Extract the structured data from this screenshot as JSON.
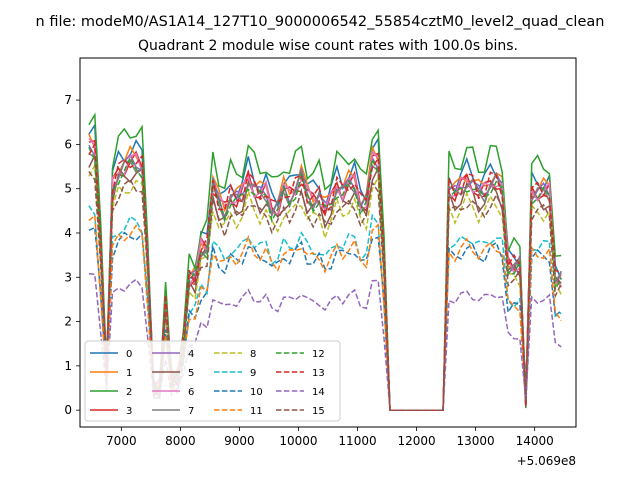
{
  "chart_data": {
    "type": "line",
    "suptitle": "n file: modeM0/AS1A14_127T10_9000006542_55854cztM0_level2_quad_clean",
    "title": "Quadrant 2 module wise count rates with 100.0s bins.",
    "xlabel": "",
    "ylabel": "",
    "x_offset_label": "+5.069e8",
    "xlim": [
      6300,
      14700
    ],
    "ylim": [
      -0.38,
      7.95
    ],
    "xticks": [
      7000,
      8000,
      9000,
      10000,
      11000,
      12000,
      13000,
      14000
    ],
    "yticks": [
      0,
      1,
      2,
      3,
      4,
      5,
      6,
      7
    ],
    "grid": false,
    "legend": {
      "placement": "lower-left",
      "columns": 4
    },
    "x": [
      6450,
      6550,
      6650,
      6750,
      6850,
      6950,
      7050,
      7150,
      7250,
      7350,
      7450,
      7550,
      7650,
      7750,
      7850,
      7950,
      8050,
      8150,
      8250,
      8350,
      8450,
      8550,
      8650,
      8750,
      8850,
      8950,
      9050,
      9150,
      9250,
      9350,
      9450,
      9550,
      9650,
      9750,
      9850,
      9950,
      10050,
      10150,
      10250,
      10350,
      10450,
      10550,
      10650,
      10750,
      10850,
      10950,
      11050,
      11150,
      11250,
      11350,
      11450,
      11550,
      11650,
      11750,
      11850,
      11950,
      12050,
      12150,
      12250,
      12350,
      12450,
      12550,
      12650,
      12750,
      12850,
      12950,
      13050,
      13150,
      13250,
      13350,
      13450,
      13550,
      13650,
      13750,
      13850,
      13950,
      14050,
      14150,
      14250,
      14350,
      14450
    ],
    "series": [
      {
        "name": "0",
        "color": "#1f77b4",
        "dash": "solid",
        "scale": 0.84,
        "offset": 0.22
      },
      {
        "name": "1",
        "color": "#ff7f0e",
        "dash": "solid",
        "scale": 0.82,
        "offset": 0.16
      },
      {
        "name": "2",
        "color": "#2ca02c",
        "dash": "solid",
        "scale": 0.9,
        "offset": 0.1
      },
      {
        "name": "3",
        "color": "#d62728",
        "dash": "solid",
        "scale": 0.8,
        "offset": 0.28
      },
      {
        "name": "4",
        "color": "#9467bd",
        "dash": "solid",
        "scale": 0.8,
        "offset": 0.34
      },
      {
        "name": "5",
        "color": "#8c564b",
        "dash": "solid",
        "scale": 0.76,
        "offset": 0.4
      },
      {
        "name": "6",
        "color": "#e377c2",
        "dash": "solid",
        "scale": 0.8,
        "offset": 0.46
      },
      {
        "name": "7",
        "color": "#7f7f7f",
        "dash": "solid",
        "scale": 0.79,
        "offset": 0.52
      },
      {
        "name": "8",
        "color": "#bcbd22",
        "dash": "dashed",
        "scale": 0.72,
        "offset": 0.58
      },
      {
        "name": "9",
        "color": "#17becf",
        "dash": "dashed",
        "scale": 0.6,
        "offset": 0.64
      },
      {
        "name": "10",
        "color": "#1f77b4",
        "dash": "dashed",
        "scale": 0.56,
        "offset": 0.7
      },
      {
        "name": "11",
        "color": "#ff7f0e",
        "dash": "dashed",
        "scale": 0.57,
        "offset": 0.76
      },
      {
        "name": "12",
        "color": "#2ca02c",
        "dash": "dashed",
        "scale": 0.78,
        "offset": 0.82
      },
      {
        "name": "13",
        "color": "#d62728",
        "dash": "dashed",
        "scale": 0.8,
        "offset": 0.88
      },
      {
        "name": "14",
        "color": "#9467bd",
        "dash": "dashed",
        "scale": 0.4,
        "offset": 0.94
      },
      {
        "name": "15",
        "color": "#8c564b",
        "dash": "dashed",
        "scale": 0.72,
        "offset": 1.0
      }
    ]
  }
}
